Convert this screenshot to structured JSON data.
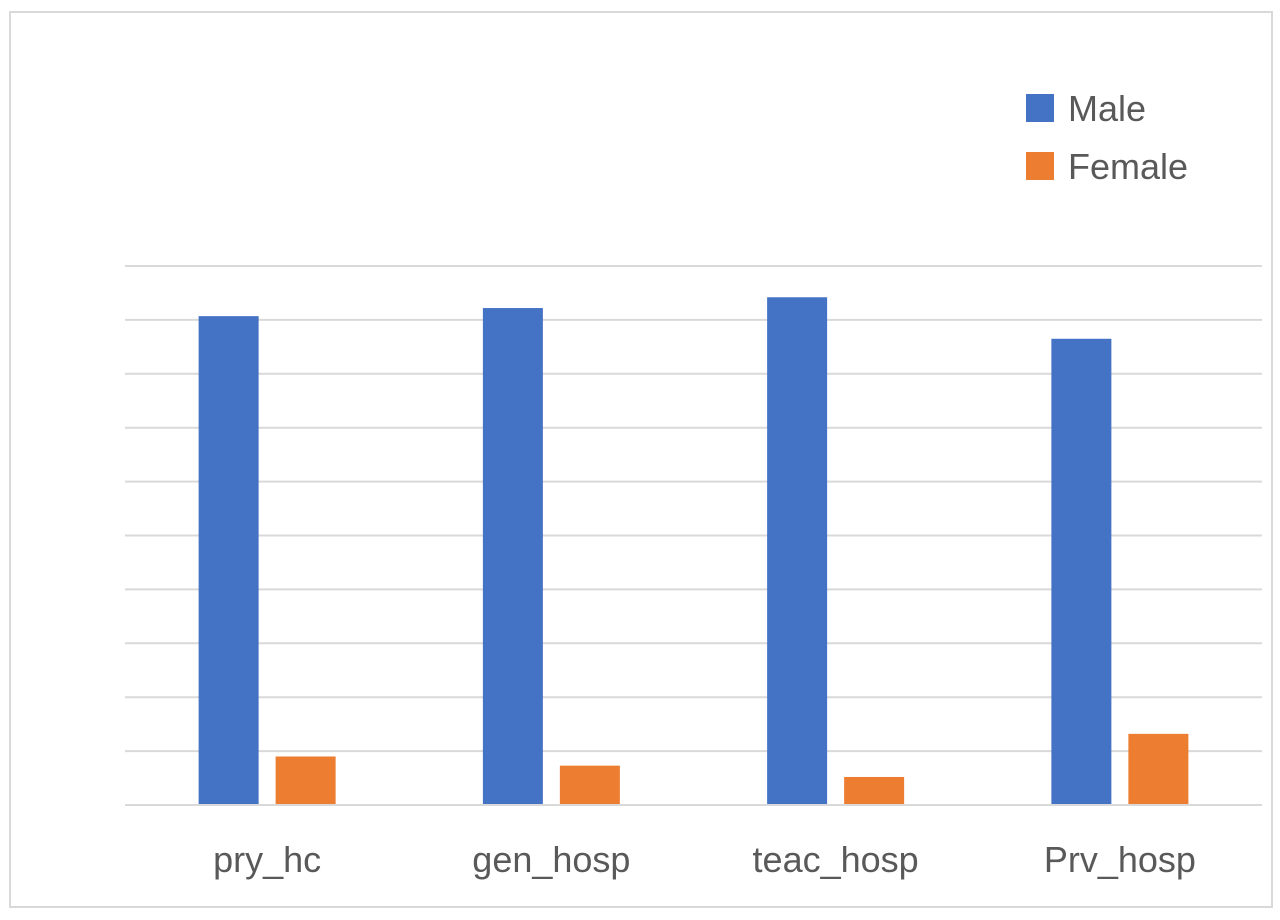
{
  "chart_data": {
    "type": "bar",
    "title": "",
    "xlabel": "",
    "ylabel": "",
    "categories": [
      "pry_hc",
      "gen_hosp",
      "teac_hosp",
      "Prv_hosp"
    ],
    "series": [
      {
        "name": "Male",
        "color": "#4472c4",
        "values": [
          90.7,
          92.2,
          94.2,
          86.5
        ]
      },
      {
        "name": "Female",
        "color": "#ed7d31",
        "values": [
          9.0,
          7.3,
          5.2,
          13.2
        ]
      }
    ],
    "ylim": [
      0,
      100
    ],
    "grid": true,
    "gridline_step": 10,
    "y_tick_labels_shown": false,
    "legend": {
      "position": "top-right",
      "entries": [
        "Male",
        "Female"
      ]
    }
  }
}
